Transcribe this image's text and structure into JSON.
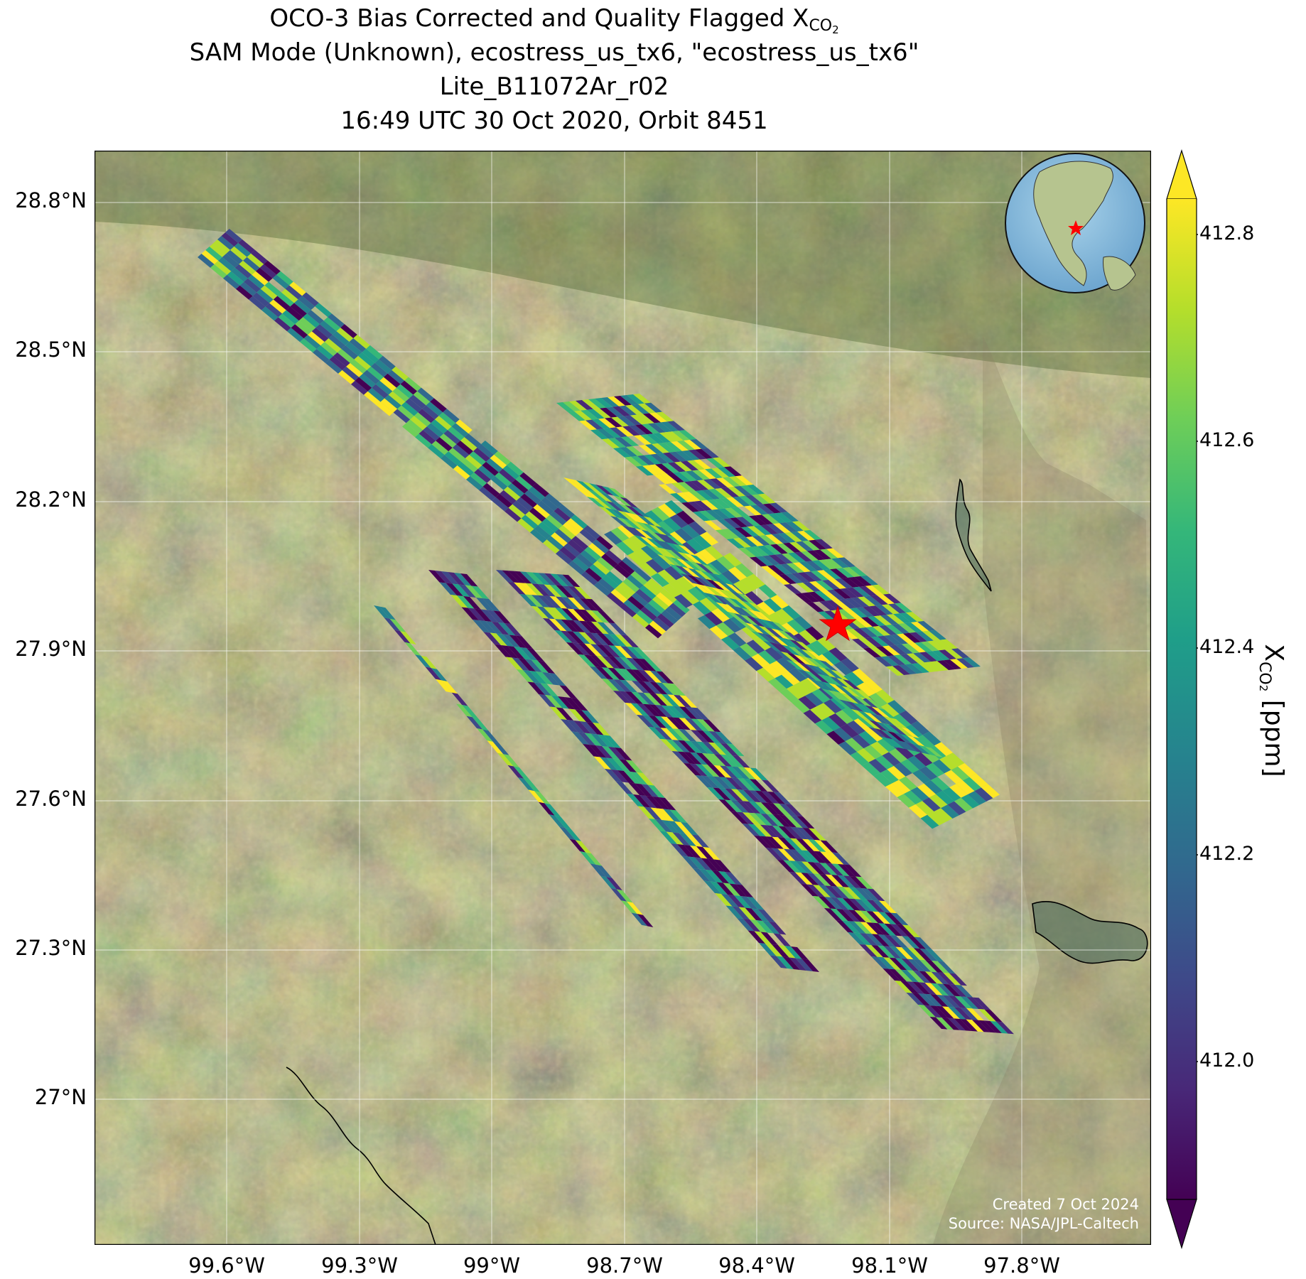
{
  "title": {
    "line1_prefix": "OCO-3 Bias Corrected and Quality Flagged X",
    "line1_sub": "CO",
    "line1_subsub": "2",
    "line2": "SAM Mode (Unknown), ecostress_us_tx6, \"ecostress_us_tx6\"",
    "line3": "Lite_B11072Ar_r02",
    "line4": "16:49 UTC 30 Oct 2020, Orbit 8451"
  },
  "map": {
    "latitude_ticks": [
      "28.8°N",
      "28.5°N",
      "28.2°N",
      "27.9°N",
      "27.6°N",
      "27.3°N",
      "27°N"
    ],
    "longitude_ticks": [
      "99.6°W",
      "99.3°W",
      "99°W",
      "98.7°W",
      "98.4°W",
      "98.1°W",
      "97.8°W"
    ],
    "target_marker": "red-star",
    "inset": "globe-locator",
    "credit_line1": "Created 7 Oct 2024",
    "credit_line2": "Source: NASA/JPL-Caltech"
  },
  "colorbar": {
    "label_prefix": "X",
    "label_sub": "CO",
    "label_subsub": "2",
    "label_suffix": " [ppm]",
    "ticks": [
      "412.8",
      "412.6",
      "412.4",
      "412.2",
      "412.0"
    ],
    "colormap": "viridis",
    "extend": "both"
  },
  "colors": {
    "land_base": "#6f6a3e",
    "star": "#ff0000",
    "viridis": [
      "#440154",
      "#482878",
      "#3e4989",
      "#31688e",
      "#26828e",
      "#1f9e89",
      "#35b779",
      "#6ece58",
      "#b5de2b",
      "#fde725"
    ]
  }
}
